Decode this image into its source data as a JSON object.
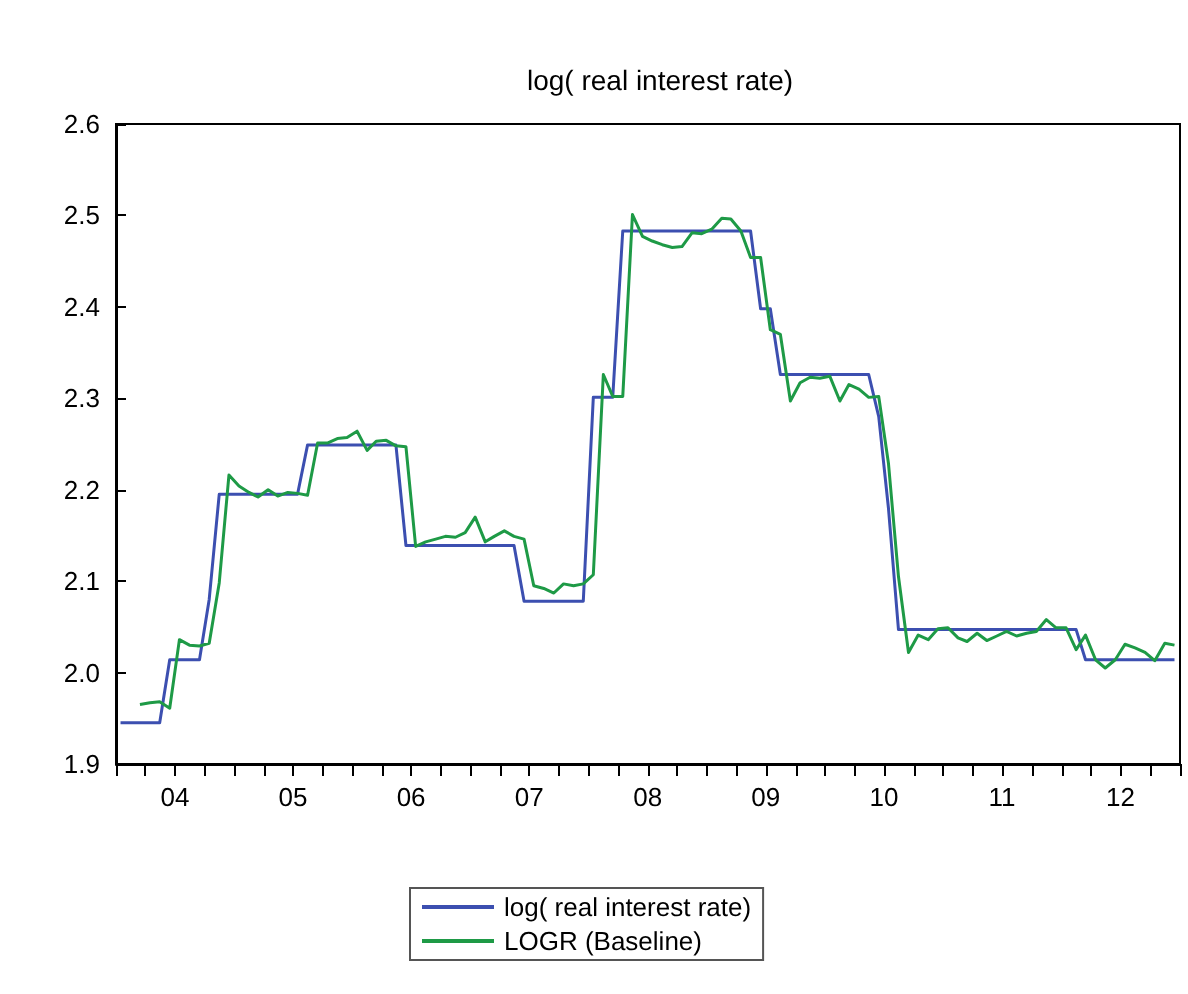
{
  "chart_data": {
    "type": "line",
    "title": "log( real interest rate)",
    "legend": "bottom",
    "grid": false,
    "marker": "none",
    "line_style": "solid",
    "x": [
      "2004-01-15",
      "2004-02-15",
      "2004-03-15",
      "2004-04-15",
      "2004-05-15",
      "2004-06-15",
      "2004-07-15",
      "2004-08-15",
      "2004-09-15",
      "2004-10-15",
      "2004-11-15",
      "2004-12-15",
      "2005-01-15",
      "2005-02-15",
      "2005-03-15",
      "2005-04-15",
      "2005-05-15",
      "2005-06-15",
      "2005-07-15",
      "2005-08-15",
      "2005-09-15",
      "2005-10-15",
      "2005-11-15",
      "2005-12-15",
      "2006-01-15",
      "2006-02-15",
      "2006-03-15",
      "2006-04-15",
      "2006-05-15",
      "2006-06-15",
      "2006-07-15",
      "2006-08-15",
      "2006-09-15",
      "2006-10-15",
      "2006-11-15",
      "2006-12-15",
      "2007-01-15",
      "2007-02-15",
      "2007-03-15",
      "2007-04-15",
      "2007-05-15",
      "2007-06-15",
      "2007-07-15",
      "2007-08-15",
      "2007-09-15",
      "2007-10-15",
      "2007-11-15",
      "2007-12-15",
      "2008-01-15",
      "2008-02-15",
      "2008-03-15",
      "2008-04-15",
      "2008-05-15",
      "2008-06-15",
      "2008-07-15",
      "2008-08-15",
      "2008-09-15",
      "2008-10-15",
      "2008-11-15",
      "2008-12-15",
      "2009-01-15",
      "2009-02-15",
      "2009-03-15",
      "2009-04-15",
      "2009-05-15",
      "2009-06-15",
      "2009-07-15",
      "2009-08-15",
      "2009-09-15",
      "2009-10-15",
      "2009-11-15",
      "2009-12-15",
      "2010-01-15",
      "2010-02-15",
      "2010-03-15",
      "2010-04-15",
      "2010-05-15",
      "2010-06-15",
      "2010-07-15",
      "2010-08-15",
      "2010-09-15",
      "2010-10-15",
      "2010-11-15",
      "2010-12-15",
      "2011-01-15",
      "2011-02-15",
      "2011-03-15",
      "2011-04-15",
      "2011-05-15",
      "2011-06-15",
      "2011-07-15",
      "2011-08-15",
      "2011-09-15",
      "2011-10-15",
      "2011-11-15",
      "2011-12-15",
      "2012-01-15",
      "2012-02-15",
      "2012-03-15",
      "2012-04-15",
      "2012-05-15",
      "2012-06-15",
      "2012-07-15",
      "2012-08-15",
      "2012-09-15",
      "2012-10-15",
      "2012-11-15",
      "2012-12-15"
    ],
    "series": [
      {
        "name": "log( real interest rate)",
        "color": "#3c4fb0",
        "values": [
          1.945,
          1.945,
          1.945,
          1.945,
          1.945,
          2.014,
          2.014,
          2.014,
          2.014,
          2.08,
          2.195,
          2.195,
          2.195,
          2.195,
          2.195,
          2.195,
          2.195,
          2.195,
          2.195,
          2.249,
          2.249,
          2.249,
          2.249,
          2.249,
          2.249,
          2.249,
          2.249,
          2.249,
          2.249,
          2.139,
          2.139,
          2.139,
          2.139,
          2.139,
          2.139,
          2.139,
          2.139,
          2.139,
          2.139,
          2.139,
          2.139,
          2.078,
          2.078,
          2.078,
          2.078,
          2.078,
          2.078,
          2.078,
          2.301,
          2.301,
          2.301,
          2.483,
          2.483,
          2.483,
          2.483,
          2.483,
          2.483,
          2.483,
          2.483,
          2.483,
          2.483,
          2.483,
          2.483,
          2.483,
          2.483,
          2.398,
          2.398,
          2.326,
          2.326,
          2.326,
          2.326,
          2.326,
          2.326,
          2.326,
          2.326,
          2.326,
          2.326,
          2.28,
          2.18,
          2.047,
          2.047,
          2.047,
          2.047,
          2.047,
          2.047,
          2.047,
          2.047,
          2.047,
          2.047,
          2.047,
          2.047,
          2.047,
          2.047,
          2.047,
          2.047,
          2.047,
          2.047,
          2.047,
          2.014,
          2.014,
          2.014,
          2.014,
          2.014,
          2.014,
          2.014,
          2.014,
          2.014,
          2.014
        ]
      },
      {
        "name": "LOGR (Baseline)",
        "color": "#1e9a46",
        "values": [
          null,
          null,
          1.965,
          1.967,
          1.968,
          1.961,
          2.036,
          2.03,
          2.029,
          2.032,
          2.098,
          2.216,
          2.204,
          2.197,
          2.192,
          2.2,
          2.193,
          2.197,
          2.196,
          2.194,
          2.251,
          2.251,
          2.256,
          2.257,
          2.264,
          2.243,
          2.253,
          2.254,
          2.248,
          2.247,
          2.138,
          2.143,
          2.146,
          2.149,
          2.148,
          2.153,
          2.17,
          2.143,
          2.149,
          2.155,
          2.149,
          2.146,
          2.095,
          2.092,
          2.087,
          2.097,
          2.095,
          2.097,
          2.107,
          2.326,
          2.302,
          2.302,
          2.501,
          2.477,
          2.472,
          2.468,
          2.465,
          2.466,
          2.481,
          2.48,
          2.485,
          2.497,
          2.496,
          2.483,
          2.454,
          2.454,
          2.375,
          2.37,
          2.297,
          2.317,
          2.323,
          2.322,
          2.324,
          2.297,
          2.315,
          2.31,
          2.301,
          2.302,
          2.229,
          2.105,
          2.022,
          2.041,
          2.036,
          2.048,
          2.049,
          2.038,
          2.034,
          2.043,
          2.035,
          2.04,
          2.045,
          2.04,
          2.043,
          2.045,
          2.058,
          2.049,
          2.049,
          2.025,
          2.041,
          2.014,
          2.005,
          2.014,
          2.031,
          2.027,
          2.022,
          2.013,
          2.032,
          2.03
        ]
      }
    ],
    "xlim": [
      "2004-01-01",
      "2013-01-01"
    ],
    "xticks": [
      {
        "value": "2004-01-01",
        "label": null
      },
      {
        "value": "2004-04-01",
        "label": null
      },
      {
        "value": "2004-07-01",
        "label": "04"
      },
      {
        "value": "2004-10-01",
        "label": null
      },
      {
        "value": "2005-01-01",
        "label": null
      },
      {
        "value": "2005-04-01",
        "label": null
      },
      {
        "value": "2005-07-01",
        "label": "05"
      },
      {
        "value": "2005-10-01",
        "label": null
      },
      {
        "value": "2006-01-01",
        "label": null
      },
      {
        "value": "2006-04-01",
        "label": null
      },
      {
        "value": "2006-07-01",
        "label": "06"
      },
      {
        "value": "2006-10-01",
        "label": null
      },
      {
        "value": "2007-01-01",
        "label": null
      },
      {
        "value": "2007-04-01",
        "label": null
      },
      {
        "value": "2007-07-01",
        "label": "07"
      },
      {
        "value": "2007-10-01",
        "label": null
      },
      {
        "value": "2008-01-01",
        "label": null
      },
      {
        "value": "2008-04-01",
        "label": null
      },
      {
        "value": "2008-07-01",
        "label": "08"
      },
      {
        "value": "2008-10-01",
        "label": null
      },
      {
        "value": "2009-01-01",
        "label": null
      },
      {
        "value": "2009-04-01",
        "label": null
      },
      {
        "value": "2009-07-01",
        "label": "09"
      },
      {
        "value": "2009-10-01",
        "label": null
      },
      {
        "value": "2010-01-01",
        "label": null
      },
      {
        "value": "2010-04-01",
        "label": null
      },
      {
        "value": "2010-07-01",
        "label": "10"
      },
      {
        "value": "2010-10-01",
        "label": null
      },
      {
        "value": "2011-01-01",
        "label": null
      },
      {
        "value": "2011-04-01",
        "label": null
      },
      {
        "value": "2011-07-01",
        "label": "11"
      },
      {
        "value": "2011-10-01",
        "label": null
      },
      {
        "value": "2012-01-01",
        "label": null
      },
      {
        "value": "2012-04-01",
        "label": null
      },
      {
        "value": "2012-07-01",
        "label": "12"
      },
      {
        "value": "2012-10-01",
        "label": null
      },
      {
        "value": "2013-01-01",
        "label": null
      }
    ],
    "ylim": [
      1.9,
      2.6
    ],
    "yticks": [
      {
        "value": 1.9,
        "label": "1.9"
      },
      {
        "value": 2.0,
        "label": "2.0"
      },
      {
        "value": 2.1,
        "label": "2.1"
      },
      {
        "value": 2.2,
        "label": "2.2"
      },
      {
        "value": 2.3,
        "label": "2.3"
      },
      {
        "value": 2.4,
        "label": "2.4"
      },
      {
        "value": 2.5,
        "label": "2.5"
      },
      {
        "value": 2.6,
        "label": "2.6"
      }
    ]
  }
}
